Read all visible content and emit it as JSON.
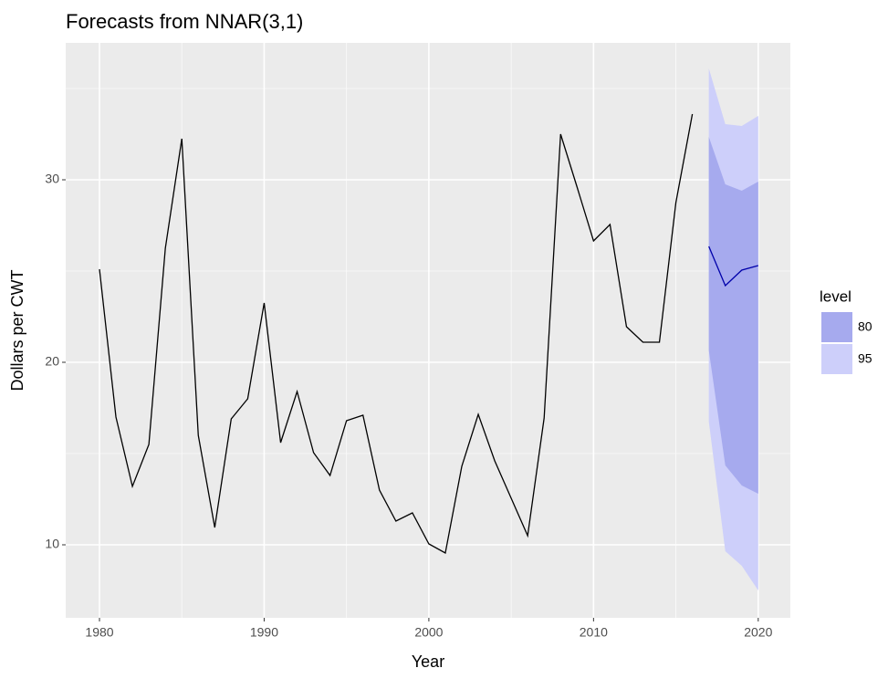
{
  "chart_data": {
    "type": "line",
    "title": "Forecasts from NNAR(3,1)",
    "x_label": "Year",
    "y_label": "Dollars per CWT",
    "x": [
      1980,
      1981,
      1982,
      1983,
      1984,
      1985,
      1986,
      1987,
      1988,
      1989,
      1990,
      1991,
      1992,
      1993,
      1994,
      1995,
      1996,
      1997,
      1998,
      1999,
      2000,
      2001,
      2002,
      2003,
      2004,
      2005,
      2006,
      2007,
      2008,
      2009,
      2010,
      2011,
      2012,
      2013,
      2014,
      2015,
      2016
    ],
    "values": [
      25.1,
      17.0,
      13.2,
      15.5,
      26.25,
      32.25,
      16.0,
      10.95,
      16.9,
      18.0,
      23.25,
      15.6,
      18.4,
      15.05,
      13.8,
      16.8,
      17.1,
      13.0,
      11.3,
      11.75,
      10.05,
      9.55,
      14.3,
      17.15,
      14.6,
      12.55,
      10.5,
      16.95,
      32.5,
      29.6,
      26.65,
      27.55,
      21.95,
      21.1,
      21.1,
      28.75,
      33.6
    ],
    "color": "#000000",
    "forecast": {
      "x": [
        2017,
        2018,
        2019,
        2020
      ],
      "mean": [
        26.35,
        24.2,
        25.05,
        25.3
      ],
      "color": "#0000aa"
    },
    "legend_title": "level",
    "intervals": [
      {
        "level": 95,
        "color": "#cdcffa",
        "lower": [
          16.75,
          9.65,
          8.85,
          7.5
        ],
        "upper": [
          36.1,
          33.05,
          32.95,
          33.5
        ]
      },
      {
        "level": 80,
        "color": "#a6aaee",
        "lower": [
          20.65,
          14.35,
          13.25,
          12.8
        ],
        "upper": [
          32.35,
          29.75,
          29.4,
          29.9
        ]
      }
    ],
    "xlim": [
      1977.95,
      2021.95
    ],
    "ylim": [
      6.0,
      37.5
    ],
    "xticks": [
      1980,
      1990,
      2000,
      2010,
      2020
    ],
    "yticks": [
      10,
      20,
      30
    ],
    "minor_xticks": [
      1985,
      1995,
      2005,
      2015
    ],
    "minor_yticks": [
      15,
      25,
      35
    ],
    "grid": true,
    "legend": "right"
  }
}
